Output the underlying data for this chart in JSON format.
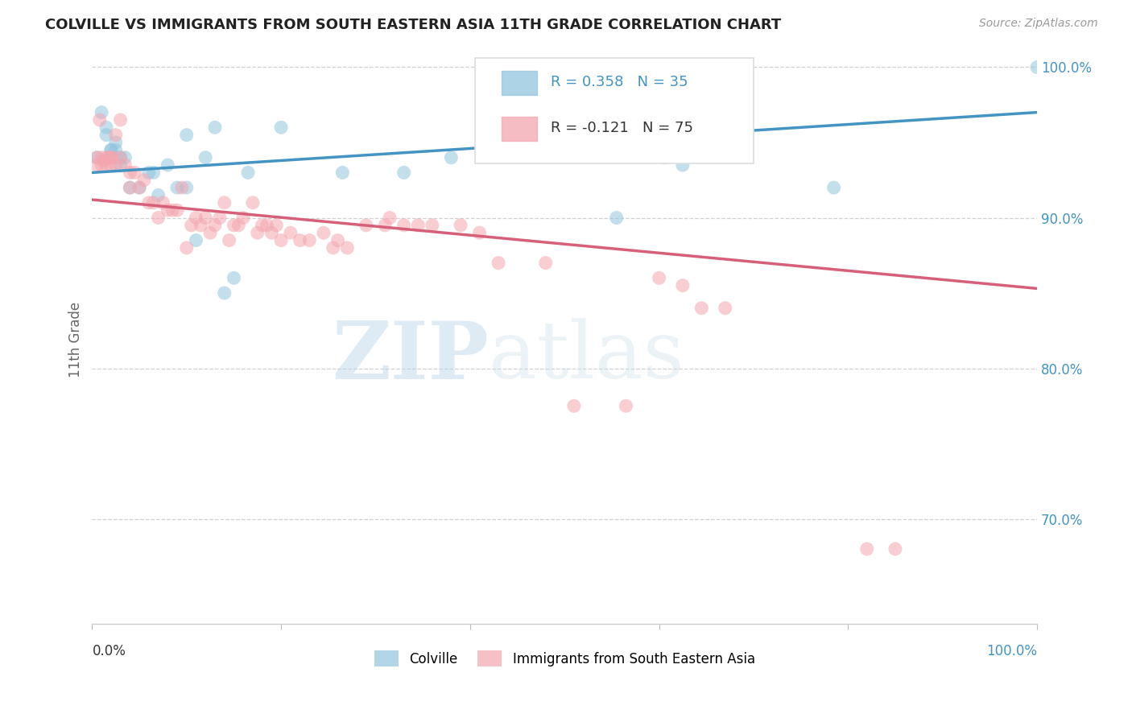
{
  "title": "COLVILLE VS IMMIGRANTS FROM SOUTH EASTERN ASIA 11TH GRADE CORRELATION CHART",
  "source": "Source: ZipAtlas.com",
  "ylabel": "11th Grade",
  "legend_blue_label": "Colville",
  "legend_pink_label": "Immigrants from South Eastern Asia",
  "R_blue": 0.358,
  "N_blue": 35,
  "R_pink": -0.121,
  "N_pink": 75,
  "blue_color": "#92c5de",
  "pink_color": "#f4a6b0",
  "blue_line_color": "#4393c3",
  "pink_line_color": "#d6607a",
  "watermark_zip": "ZIP",
  "watermark_atlas": "atlas",
  "xlim": [
    0.0,
    1.0
  ],
  "ylim": [
    0.63,
    1.008
  ],
  "yticks": [
    0.7,
    0.8,
    0.9,
    1.0
  ],
  "ytick_labels": [
    "70.0%",
    "80.0%",
    "90.0%",
    "100.0%"
  ],
  "blue_line_x0": 0.0,
  "blue_line_y0": 0.93,
  "blue_line_x1": 1.0,
  "blue_line_y1": 0.97,
  "pink_line_x0": 0.0,
  "pink_line_y0": 0.912,
  "pink_line_x1": 1.0,
  "pink_line_y1": 0.853,
  "blue_x": [
    0.005,
    0.01,
    0.015,
    0.015,
    0.02,
    0.02,
    0.025,
    0.025,
    0.03,
    0.03,
    0.035,
    0.04,
    0.05,
    0.06,
    0.065,
    0.07,
    0.08,
    0.09,
    0.1,
    0.1,
    0.11,
    0.12,
    0.13,
    0.14,
    0.15,
    0.165,
    0.2,
    0.265,
    0.33,
    0.38,
    0.555,
    0.605,
    0.625,
    0.785,
    1.0
  ],
  "blue_y": [
    0.94,
    0.97,
    0.955,
    0.96,
    0.945,
    0.945,
    0.945,
    0.95,
    0.935,
    0.94,
    0.94,
    0.92,
    0.92,
    0.93,
    0.93,
    0.915,
    0.935,
    0.92,
    0.955,
    0.92,
    0.885,
    0.94,
    0.96,
    0.85,
    0.86,
    0.93,
    0.96,
    0.93,
    0.93,
    0.94,
    0.9,
    0.94,
    0.935,
    0.92,
    1.0
  ],
  "pink_x": [
    0.005,
    0.005,
    0.008,
    0.01,
    0.01,
    0.012,
    0.015,
    0.015,
    0.018,
    0.02,
    0.02,
    0.022,
    0.025,
    0.025,
    0.03,
    0.03,
    0.035,
    0.04,
    0.04,
    0.045,
    0.05,
    0.055,
    0.06,
    0.065,
    0.07,
    0.075,
    0.08,
    0.085,
    0.09,
    0.095,
    0.1,
    0.105,
    0.11,
    0.115,
    0.12,
    0.125,
    0.13,
    0.135,
    0.14,
    0.145,
    0.15,
    0.155,
    0.16,
    0.17,
    0.175,
    0.18,
    0.185,
    0.19,
    0.195,
    0.2,
    0.21,
    0.22,
    0.23,
    0.245,
    0.255,
    0.26,
    0.27,
    0.29,
    0.31,
    0.315,
    0.33,
    0.345,
    0.36,
    0.39,
    0.41,
    0.43,
    0.48,
    0.51,
    0.565,
    0.6,
    0.625,
    0.645,
    0.67,
    0.82,
    0.85
  ],
  "pink_y": [
    0.935,
    0.94,
    0.965,
    0.94,
    0.935,
    0.938,
    0.935,
    0.94,
    0.94,
    0.935,
    0.94,
    0.94,
    0.935,
    0.955,
    0.965,
    0.94,
    0.935,
    0.92,
    0.93,
    0.93,
    0.92,
    0.925,
    0.91,
    0.91,
    0.9,
    0.91,
    0.905,
    0.905,
    0.905,
    0.92,
    0.88,
    0.895,
    0.9,
    0.895,
    0.9,
    0.89,
    0.895,
    0.9,
    0.91,
    0.885,
    0.895,
    0.895,
    0.9,
    0.91,
    0.89,
    0.895,
    0.895,
    0.89,
    0.895,
    0.885,
    0.89,
    0.885,
    0.885,
    0.89,
    0.88,
    0.885,
    0.88,
    0.895,
    0.895,
    0.9,
    0.895,
    0.895,
    0.895,
    0.895,
    0.89,
    0.87,
    0.87,
    0.775,
    0.775,
    0.86,
    0.855,
    0.84,
    0.84,
    0.68,
    0.68
  ]
}
